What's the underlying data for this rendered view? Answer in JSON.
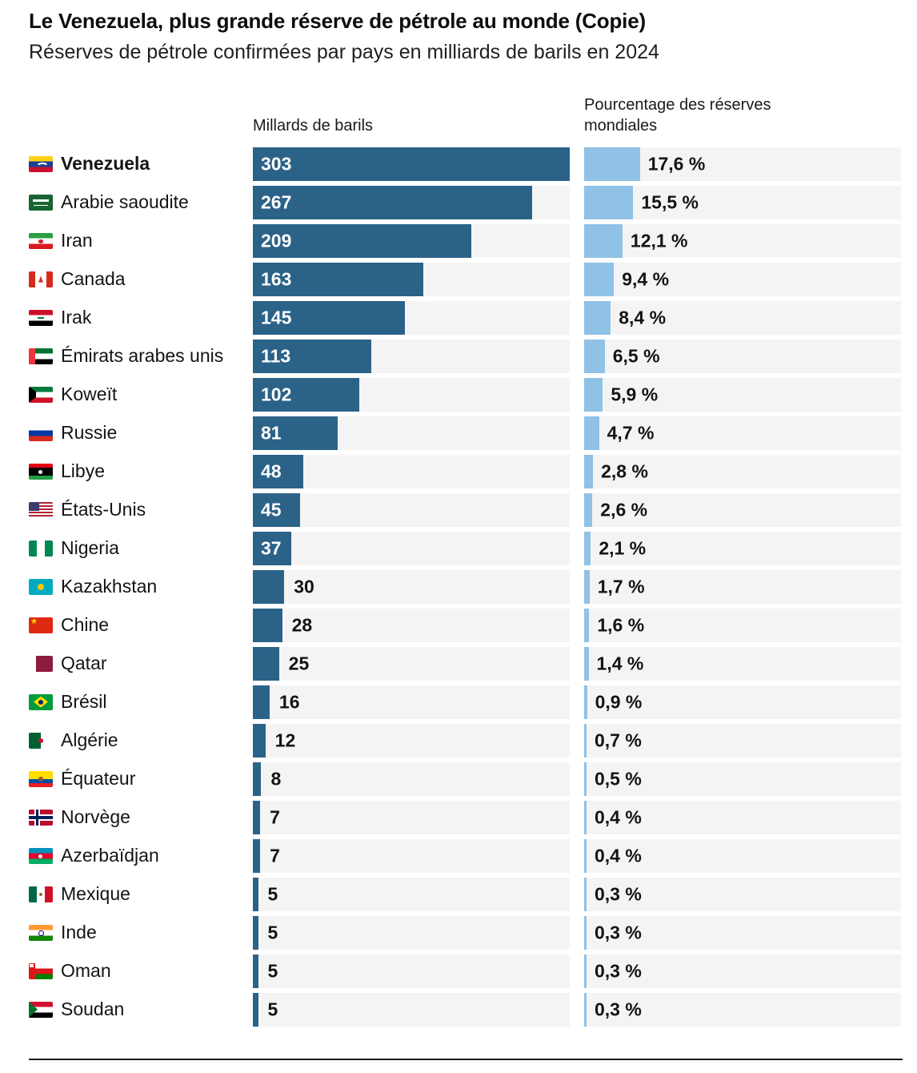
{
  "colors": {
    "barrels_bar": "#2b6288",
    "percent_bar": "#90c1e6",
    "track_background": "#f4f4f4",
    "title_text": "#0d0d0d",
    "bottom_rule": "#1a1a1a"
  },
  "chart_data": {
    "type": "bar",
    "title": "Le Venezuela, plus grande réserve de pétrole au monde (Copie)",
    "subtitle": "Réserves de pétrole confirmées par pays en milliards de barils en 2024",
    "col_left_header": "Millards de barils",
    "col_right_header": "Pourcentage des réserves mondiales",
    "unit_left": "milliards de barils",
    "unit_right": "pourcentage des réserves mondiales",
    "axis_left_max": 303,
    "axis_right_max_percent": 100,
    "grid": false,
    "legend": "none",
    "rows": [
      {
        "country": "Venezuela",
        "flag": "ve",
        "value": 303,
        "pct": 17.6,
        "pct_label": "17,6 %",
        "bold": true
      },
      {
        "country": "Arabie saoudite",
        "flag": "sa",
        "value": 267,
        "pct": 15.5,
        "pct_label": "15,5 %",
        "bold": false
      },
      {
        "country": "Iran",
        "flag": "ir",
        "value": 209,
        "pct": 12.1,
        "pct_label": "12,1 %",
        "bold": false
      },
      {
        "country": "Canada",
        "flag": "ca",
        "value": 163,
        "pct": 9.4,
        "pct_label": "9,4 %",
        "bold": false
      },
      {
        "country": "Irak",
        "flag": "iq",
        "value": 145,
        "pct": 8.4,
        "pct_label": "8,4 %",
        "bold": false
      },
      {
        "country": "Émirats arabes unis",
        "flag": "ae",
        "value": 113,
        "pct": 6.5,
        "pct_label": "6,5 %",
        "bold": false
      },
      {
        "country": "Koweït",
        "flag": "kw",
        "value": 102,
        "pct": 5.9,
        "pct_label": "5,9 %",
        "bold": false
      },
      {
        "country": "Russie",
        "flag": "ru",
        "value": 81,
        "pct": 4.7,
        "pct_label": "4,7 %",
        "bold": false
      },
      {
        "country": "Libye",
        "flag": "ly",
        "value": 48,
        "pct": 2.8,
        "pct_label": "2,8 %",
        "bold": false
      },
      {
        "country": "États-Unis",
        "flag": "us",
        "value": 45,
        "pct": 2.6,
        "pct_label": "2,6 %",
        "bold": false
      },
      {
        "country": "Nigeria",
        "flag": "ng",
        "value": 37,
        "pct": 2.1,
        "pct_label": "2,1 %",
        "bold": false
      },
      {
        "country": "Kazakhstan",
        "flag": "kz",
        "value": 30,
        "pct": 1.7,
        "pct_label": "1,7 %",
        "bold": false
      },
      {
        "country": "Chine",
        "flag": "cn",
        "value": 28,
        "pct": 1.6,
        "pct_label": "1,6 %",
        "bold": false
      },
      {
        "country": "Qatar",
        "flag": "qa",
        "value": 25,
        "pct": 1.4,
        "pct_label": "1,4 %",
        "bold": false
      },
      {
        "country": "Brésil",
        "flag": "br",
        "value": 16,
        "pct": 0.9,
        "pct_label": "0,9 %",
        "bold": false
      },
      {
        "country": "Algérie",
        "flag": "dz",
        "value": 12,
        "pct": 0.7,
        "pct_label": "0,7 %",
        "bold": false
      },
      {
        "country": "Équateur",
        "flag": "ec",
        "value": 8,
        "pct": 0.5,
        "pct_label": "0,5 %",
        "bold": false
      },
      {
        "country": "Norvège",
        "flag": "no",
        "value": 7,
        "pct": 0.4,
        "pct_label": "0,4 %",
        "bold": false
      },
      {
        "country": "Azerbaïdjan",
        "flag": "az",
        "value": 7,
        "pct": 0.4,
        "pct_label": "0,4 %",
        "bold": false
      },
      {
        "country": "Mexique",
        "flag": "mx",
        "value": 5,
        "pct": 0.3,
        "pct_label": "0,3 %",
        "bold": false
      },
      {
        "country": "Inde",
        "flag": "in",
        "value": 5,
        "pct": 0.3,
        "pct_label": "0,3 %",
        "bold": false
      },
      {
        "country": "Oman",
        "flag": "om",
        "value": 5,
        "pct": 0.3,
        "pct_label": "0,3 %",
        "bold": false
      },
      {
        "country": "Soudan",
        "flag": "sd",
        "value": 5,
        "pct": 0.3,
        "pct_label": "0,3 %",
        "bold": false
      }
    ]
  }
}
